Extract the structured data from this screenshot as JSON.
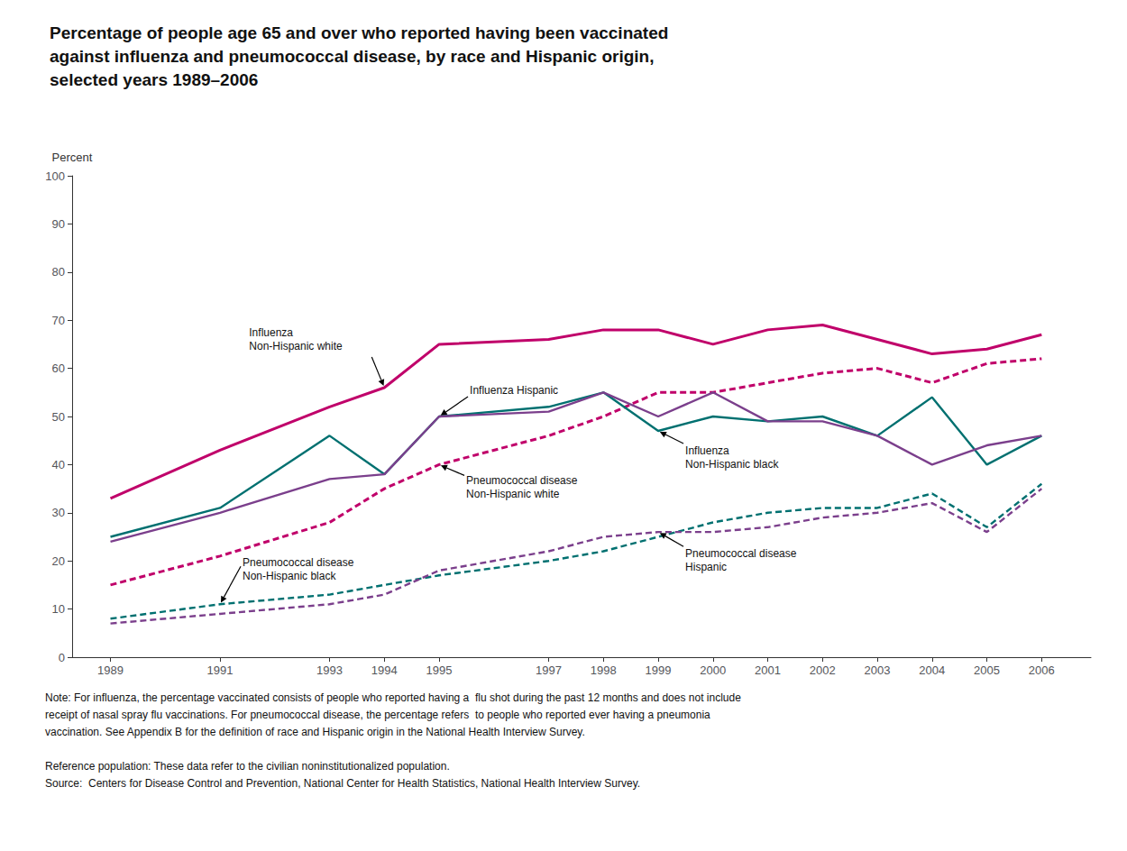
{
  "chart_data": {
    "type": "line",
    "title": "Percentage of people age 65 and over who reported having been vaccinated\nagainst influenza and pneumococcal disease, by race and Hispanic origin,\nselected years 1989–2006",
    "ylabel": "Percent",
    "x": [
      1989,
      1991,
      1993,
      1994,
      1995,
      1997,
      1998,
      1999,
      2000,
      2001,
      2002,
      2003,
      2004,
      2005,
      2006
    ],
    "xlim": [
      1988.3,
      2006.9
    ],
    "xticks": [
      1989,
      1991,
      1993,
      1994,
      1995,
      1997,
      1998,
      1999,
      2000,
      2001,
      2002,
      2003,
      2004,
      2005,
      2006
    ],
    "ylim": [
      0,
      100
    ],
    "yticks": [
      0,
      10,
      20,
      30,
      40,
      50,
      60,
      70,
      80,
      90,
      100
    ],
    "grid": false,
    "series": [
      {
        "name": "Influenza\nNon-Hispanic white",
        "color": "#c0006a",
        "line_style": "solid",
        "values": [
          33,
          43,
          52,
          56,
          65,
          66,
          68,
          68,
          65,
          68,
          69,
          66,
          63,
          64,
          67
        ]
      },
      {
        "name": "Influenza\nNon-Hispanic black",
        "color": "#007070",
        "line_style": "solid",
        "values": [
          25,
          31,
          46,
          38,
          50,
          52,
          55,
          47,
          50,
          49,
          50,
          46,
          54,
          40,
          46
        ]
      },
      {
        "name": "Influenza Hispanic",
        "color": "#7b3f8c",
        "line_style": "solid",
        "values": [
          24,
          30,
          37,
          38,
          50,
          51,
          55,
          50,
          55,
          49,
          49,
          46,
          40,
          44,
          46
        ]
      },
      {
        "name": "Pneumococcal disease\nNon-Hispanic white",
        "color": "#c0006a",
        "line_style": "dashed",
        "values": [
          15,
          21,
          28,
          35,
          40,
          46,
          50,
          55,
          55,
          57,
          59,
          60,
          57,
          61,
          62
        ]
      },
      {
        "name": "Pneumococcal disease\nNon-Hispanic black",
        "color": "#007070",
        "line_style": "dashed",
        "values": [
          8,
          11,
          13,
          15,
          17,
          20,
          22,
          25,
          28,
          30,
          31,
          31,
          34,
          27,
          36
        ]
      },
      {
        "name": "Pneumococcal disease\nHispanic",
        "color": "#7b3f8c",
        "line_style": "dashed",
        "values": [
          7,
          9,
          11,
          13,
          18,
          22,
          25,
          26,
          26,
          27,
          29,
          30,
          32,
          26,
          35
        ]
      }
    ],
    "notes": [
      [
        "Note: For influenza, the percentage vaccinated consists of people who reported having a  flu shot during the past 12 months and does not include",
        "receipt of nasal spray flu vaccinations. For pneumococcal disease, the percentage refers  to people who reported ever having a pneumonia",
        "vaccination. See Appendix B for the definition of race and Hispanic origin in the National Health Interview Survey."
      ],
      [
        "Reference population: These data refer to the civilian noninstitutionalized population.",
        "Source:  Centers for Disease Control and Prevention, National Center for Health Statistics, National Health Interview Survey."
      ]
    ]
  }
}
